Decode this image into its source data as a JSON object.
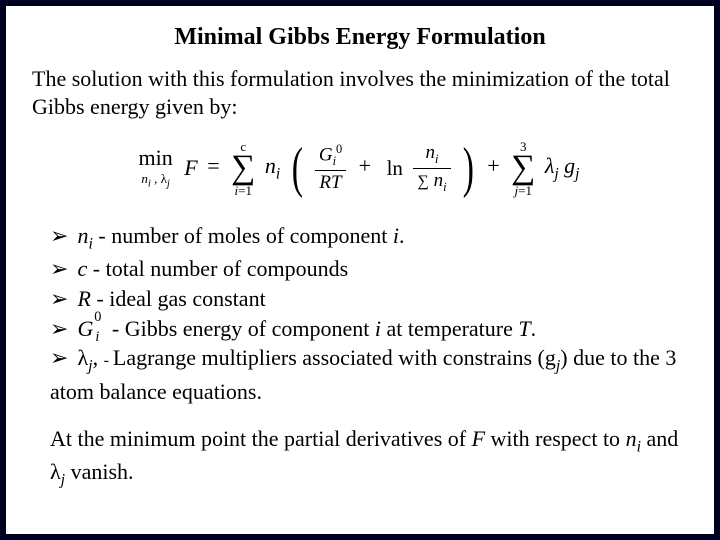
{
  "title": "Minimal Gibbs Energy Formulation",
  "intro": "The solution with this formulation involves the minimization of the total Gibbs energy given by:",
  "formula": {
    "min_label": "min",
    "min_sub": "n_i , λ_j",
    "F": "F",
    "eq": "=",
    "sum1_top": "c",
    "sum1_bot": "i=1",
    "n_i": "n_i",
    "frac1_num_G": "G",
    "frac1_num_sup": "0",
    "frac1_num_sub": "i",
    "frac1_den": "RT",
    "plus": "+",
    "ln": "ln",
    "frac2_num": "n_i",
    "frac2_den_sum": "∑ n_i",
    "sum2_top": "3",
    "sum2_bot": "j=1",
    "lambda_j": "λ_j",
    "g_j": "g_j"
  },
  "bullets": {
    "b1_pre": "n",
    "b1_sub": "i",
    "b1_post": " - number of moles of component ",
    "b1_tail_i": "i",
    "b1_dot": ".",
    "b2_pre": "c",
    "b2_post": " - total number of compounds",
    "b3_pre": "R",
    "b3_post": " - ideal gas constant",
    "b4_post": " - Gibbs energy of component ",
    "b4_i": "i",
    "b4_mid": " at temperature ",
    "b4_T": "T",
    "b4_dot": ".",
    "b5_pre": "λ",
    "b5_sub": "j",
    "b5_comma": ", ",
    "b5_dash": "- ",
    "b5_post1": "Lagrange multipliers associated with constrains (g",
    "b5_gjsub": "j",
    "b5_post2": ") due to  the 3 atom balance equations."
  },
  "closing_l1": "At the minimum point the partial derivatives of ",
  "closing_F": "F",
  "closing_l2": " with respect to ",
  "closing_n": "n",
  "closing_ni": "i",
  "closing_and": " and λ",
  "closing_lj": "j",
  "closing_end": " vanish.",
  "colors": {
    "border": "#000020",
    "text": "#000000",
    "background": "#ffffff"
  }
}
